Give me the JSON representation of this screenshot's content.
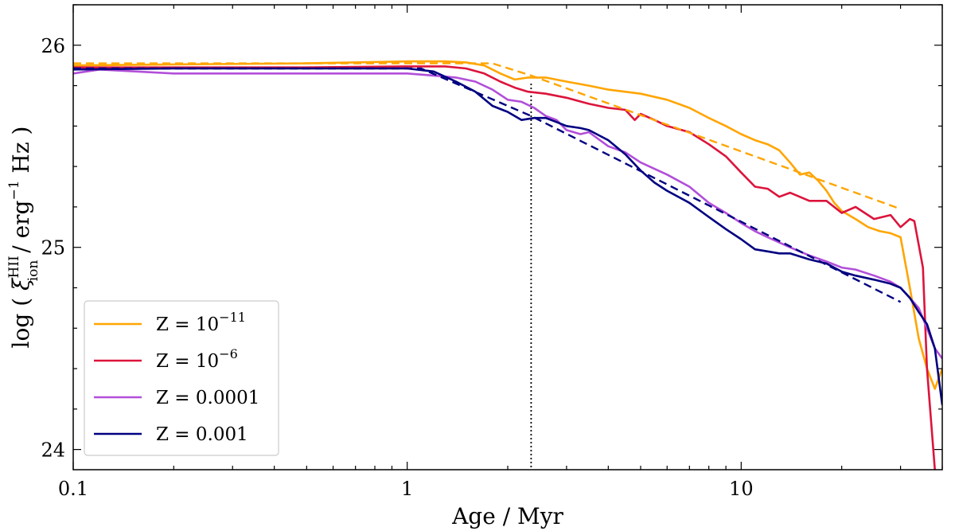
{
  "chart_data": {
    "type": "line",
    "title": "",
    "xlabel": "Age / Myr",
    "ylabel_parts": {
      "prefix": "log ( ",
      "xi": "ξ",
      "sup": "HII",
      "sub": "ion",
      "mid": " / erg",
      "exp": "−1",
      "suffix": " Hz )"
    },
    "xscale": "log",
    "xlim": [
      0.1,
      40
    ],
    "ylim": [
      23.9,
      26.2
    ],
    "xticks": [
      {
        "value": 0.1,
        "label": "0.1"
      },
      {
        "value": 1,
        "label": "1"
      },
      {
        "value": 10,
        "label": "10"
      }
    ],
    "yticks": [
      {
        "value": 24,
        "label": "24"
      },
      {
        "value": 25,
        "label": "25"
      },
      {
        "value": 26,
        "label": "26"
      }
    ],
    "grid": false,
    "legend_position": "bottom-left",
    "vline": {
      "x": 2.35,
      "style": "dotted",
      "color": "#000000"
    },
    "series": [
      {
        "key": "z1e-11",
        "legend_base": "Z = 10",
        "legend_exp": "−11",
        "color": "#FFA500",
        "x": [
          0.1,
          0.2,
          0.5,
          1.0,
          1.3,
          1.5,
          1.7,
          1.9,
          2.1,
          2.3,
          2.6,
          3.0,
          3.5,
          4.0,
          5.0,
          6.0,
          7.0,
          8.0,
          9.0,
          10.0,
          11.0,
          12.0,
          13.0,
          14.0,
          15.0,
          16.0,
          17.0,
          18.0,
          19.0,
          20.0,
          22.0,
          24.0,
          26.0,
          28.0,
          30.0,
          32.0,
          34.0,
          36.0,
          38.0,
          40.0
        ],
        "y": [
          25.9,
          25.905,
          25.91,
          25.92,
          25.92,
          25.915,
          25.9,
          25.86,
          25.83,
          25.84,
          25.84,
          25.82,
          25.8,
          25.78,
          25.76,
          25.73,
          25.69,
          25.64,
          25.6,
          25.56,
          25.53,
          25.51,
          25.48,
          25.42,
          25.36,
          25.37,
          25.33,
          25.28,
          25.22,
          25.18,
          25.14,
          25.1,
          25.08,
          25.07,
          25.05,
          24.8,
          24.55,
          24.4,
          24.3,
          24.4
        ]
      },
      {
        "key": "z1e-6",
        "legend_base": "Z = 10",
        "legend_exp": "−6",
        "color": "#DC143C",
        "x": [
          0.1,
          0.2,
          0.5,
          1.0,
          1.3,
          1.5,
          1.7,
          1.9,
          2.1,
          2.3,
          2.6,
          3.0,
          3.5,
          4.0,
          4.5,
          4.8,
          5.0,
          5.5,
          6.0,
          7.0,
          8.0,
          9.0,
          10.0,
          11.0,
          12.0,
          13.0,
          14.0,
          16.0,
          18.0,
          20.0,
          22.0,
          25.0,
          28.0,
          30.0,
          32.0,
          33.0,
          35.0,
          36.0,
          38.0
        ],
        "y": [
          25.89,
          25.89,
          25.89,
          25.895,
          25.895,
          25.885,
          25.86,
          25.82,
          25.79,
          25.77,
          25.76,
          25.74,
          25.71,
          25.69,
          25.68,
          25.63,
          25.66,
          25.63,
          25.6,
          25.57,
          25.51,
          25.45,
          25.37,
          25.3,
          25.29,
          25.25,
          25.27,
          25.23,
          25.23,
          25.17,
          25.2,
          25.14,
          25.16,
          25.1,
          25.14,
          25.13,
          24.9,
          24.4,
          23.9
        ]
      },
      {
        "key": "z0.0001",
        "legend_base": "Z = 0.0001",
        "legend_exp": "",
        "color": "#B24FD9",
        "x": [
          0.1,
          0.12,
          0.2,
          0.5,
          1.0,
          1.2,
          1.4,
          1.6,
          1.8,
          2.0,
          2.2,
          2.4,
          2.6,
          2.8,
          3.0,
          3.3,
          3.5,
          4.0,
          4.5,
          5.0,
          6.0,
          7.0,
          8.0,
          9.0,
          10.0,
          11.0,
          12.0,
          14.0,
          16.0,
          18.0,
          20.0,
          22.0,
          25.0,
          28.0,
          30.0,
          32.0,
          34.0,
          36.0,
          38.0,
          40.0
        ],
        "y": [
          25.86,
          25.88,
          25.86,
          25.86,
          25.86,
          25.85,
          25.84,
          25.82,
          25.78,
          25.73,
          25.72,
          25.69,
          25.65,
          25.63,
          25.58,
          25.56,
          25.57,
          25.5,
          25.47,
          25.42,
          25.36,
          25.3,
          25.22,
          25.17,
          25.12,
          25.08,
          25.05,
          25.0,
          24.96,
          24.93,
          24.9,
          24.89,
          24.86,
          24.83,
          24.8,
          24.75,
          24.7,
          24.6,
          24.5,
          24.45
        ]
      },
      {
        "key": "z0.001",
        "legend_base": "Z = 0.001",
        "legend_exp": "",
        "color": "#000080",
        "x": [
          0.1,
          0.2,
          0.5,
          1.0,
          1.2,
          1.4,
          1.6,
          1.8,
          2.0,
          2.2,
          2.4,
          2.6,
          2.8,
          3.0,
          3.3,
          3.5,
          4.0,
          4.5,
          5.0,
          5.5,
          6.0,
          7.0,
          8.0,
          9.0,
          10.0,
          11.0,
          12.0,
          13.0,
          14.0,
          16.0,
          18.0,
          20.0,
          22.0,
          25.0,
          28.0,
          30.0,
          32.0,
          34.0,
          36.0,
          38.0,
          40.0
        ],
        "y": [
          25.88,
          25.885,
          25.885,
          25.885,
          25.87,
          25.82,
          25.77,
          25.7,
          25.67,
          25.63,
          25.64,
          25.64,
          25.62,
          25.6,
          25.59,
          25.58,
          25.53,
          25.46,
          25.38,
          25.32,
          25.28,
          25.22,
          25.15,
          25.09,
          25.04,
          24.99,
          24.98,
          24.97,
          24.97,
          24.94,
          24.92,
          24.88,
          24.86,
          24.84,
          24.82,
          24.8,
          24.75,
          24.68,
          24.62,
          24.5,
          24.22
        ]
      }
    ],
    "fits": [
      {
        "key": "fit-z1e-11",
        "color": "#FFA500",
        "style": "dashed",
        "x": [
          0.1,
          1.8,
          2.35,
          30.0
        ],
        "y": [
          25.91,
          25.91,
          25.85,
          25.19
        ]
      },
      {
        "key": "fit-z0.001",
        "color": "#000080",
        "style": "dashed",
        "x": [
          0.1,
          1.1,
          2.35,
          30.0
        ],
        "y": [
          25.885,
          25.885,
          25.65,
          24.73
        ]
      }
    ]
  }
}
